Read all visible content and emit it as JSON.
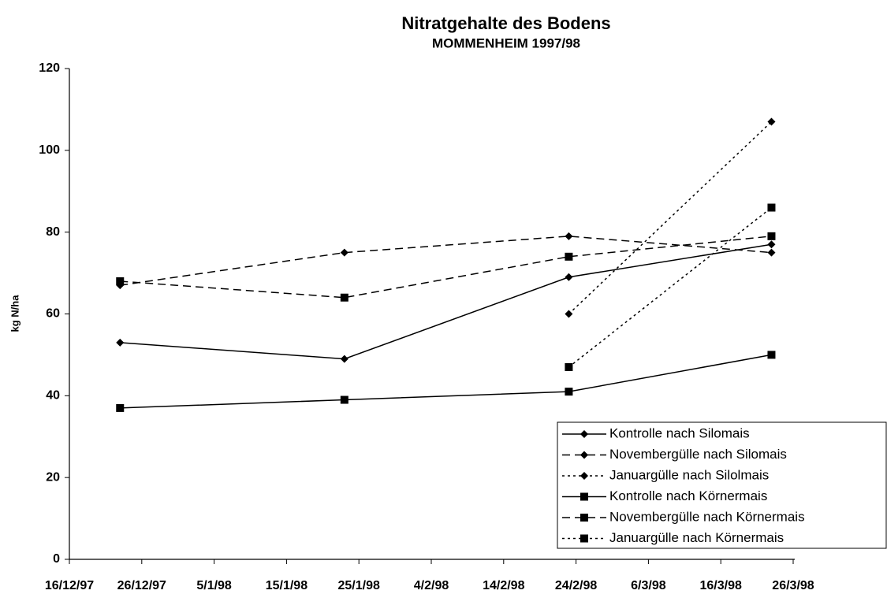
{
  "chart_data": {
    "type": "line",
    "title": "Nitratgehalte des Bodens",
    "subtitle": "MOMMENHEIM 1997/98",
    "y_label": "kg N/ha",
    "x": [
      "23/12/97",
      "23/1/98",
      "23/2/98",
      "23/3/98"
    ],
    "xlim": [
      "16/12/97",
      "26/3/98"
    ],
    "xticks": [
      "16/12/97",
      "26/12/97",
      "5/1/98",
      "15/1/98",
      "25/1/98",
      "4/2/98",
      "14/2/98",
      "24/2/98",
      "6/3/98",
      "16/3/98",
      "26/3/98"
    ],
    "ylim": [
      0,
      120
    ],
    "yticks": [
      0,
      20,
      40,
      60,
      80,
      100,
      120
    ],
    "grid": false,
    "legend": "lower right",
    "series": [
      {
        "name": "Kontrolle nach Silomais",
        "color": "#000000",
        "dash": "solid",
        "marker": "diamond",
        "values": [
          53,
          49,
          69,
          77
        ]
      },
      {
        "name": "Novembergülle nach Silomais",
        "color": "#000000",
        "dash": "dashed",
        "marker": "diamond",
        "values": [
          67,
          75,
          79,
          75
        ]
      },
      {
        "name": "Januargülle nach Silolmais",
        "color": "#000000",
        "dash": "dotted",
        "marker": "diamond",
        "values": [
          null,
          null,
          60,
          107
        ]
      },
      {
        "name": "Kontrolle nach Körnermais",
        "color": "#000000",
        "dash": "solid",
        "marker": "square",
        "values": [
          37,
          39,
          41,
          50
        ]
      },
      {
        "name": "Novembergülle nach Körnermais",
        "color": "#000000",
        "dash": "dashed",
        "marker": "square",
        "values": [
          68,
          64,
          74,
          79
        ]
      },
      {
        "name": "Januargülle nach Körnermais",
        "color": "#000000",
        "dash": "dotted",
        "marker": "square",
        "values": [
          null,
          null,
          47,
          86
        ]
      }
    ]
  }
}
